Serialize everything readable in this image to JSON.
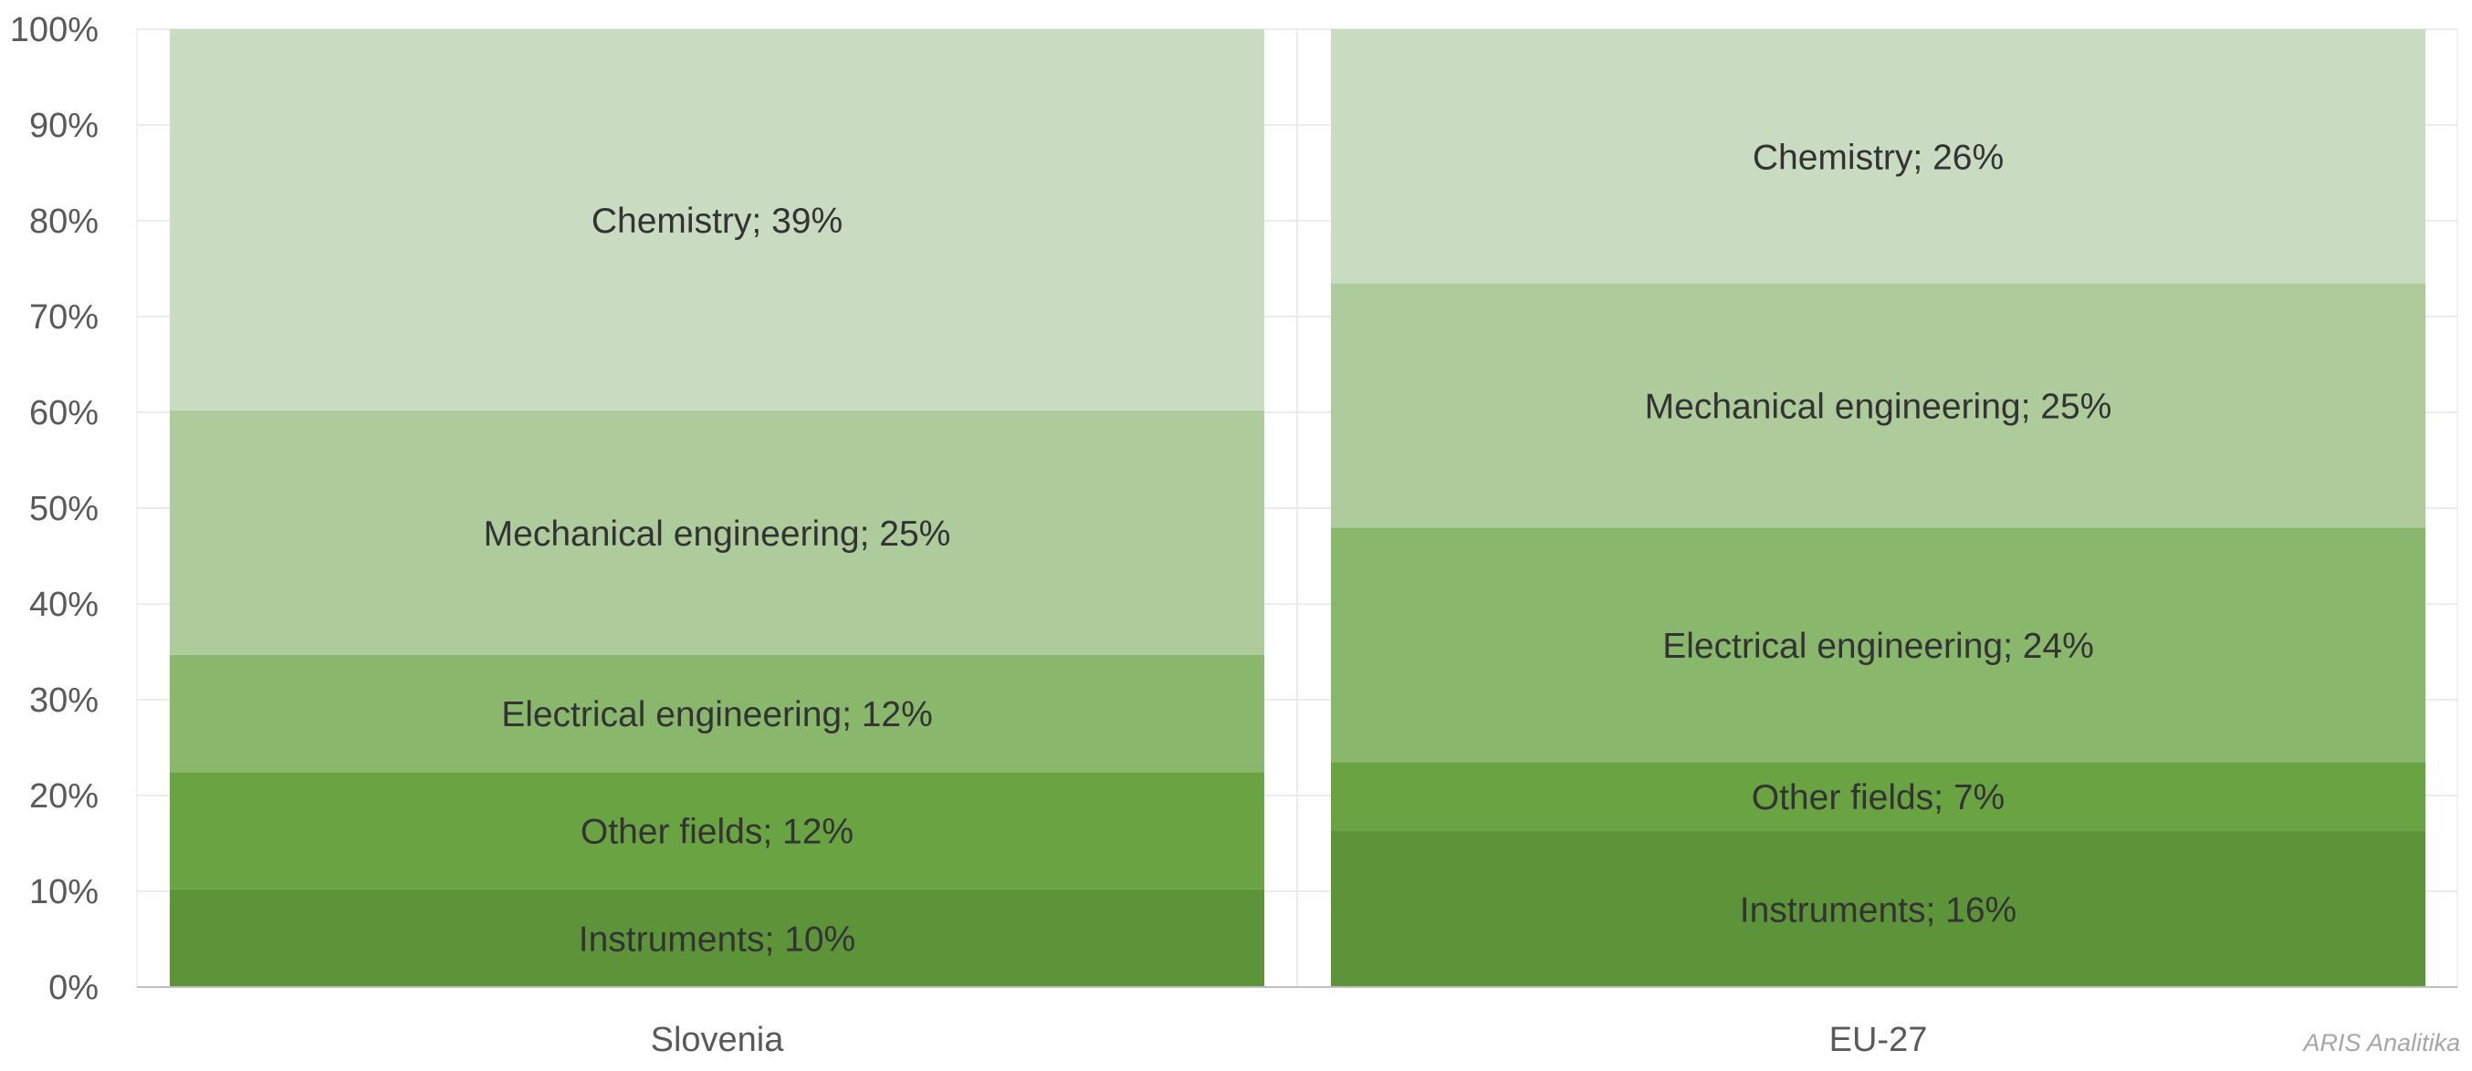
{
  "chart_data": {
    "type": "bar",
    "stacked": true,
    "percent_stacked": true,
    "categories": [
      "Slovenia",
      "EU-27"
    ],
    "series": [
      {
        "name": "Instruments",
        "values": [
          10,
          16
        ],
        "color": "#5d943a"
      },
      {
        "name": "Other fields",
        "values": [
          12,
          7
        ],
        "color": "#6aa342"
      },
      {
        "name": "Electrical engineering",
        "values": [
          12,
          24
        ],
        "color": "#89b86d"
      },
      {
        "name": "Mechanical engineering",
        "values": [
          25,
          25
        ],
        "color": "#aecb9c"
      },
      {
        "name": "Chemistry",
        "values": [
          39,
          26
        ],
        "color": "#c9dcc2"
      }
    ],
    "ylim": [
      0,
      100
    ],
    "yticks": [
      "0%",
      "10%",
      "20%",
      "30%",
      "40%",
      "50%",
      "60%",
      "70%",
      "80%",
      "90%",
      "100%"
    ],
    "grid": true,
    "legend": "none",
    "title": "",
    "xlabel": "",
    "ylabel": ""
  },
  "watermark": "ARIS Analitika"
}
